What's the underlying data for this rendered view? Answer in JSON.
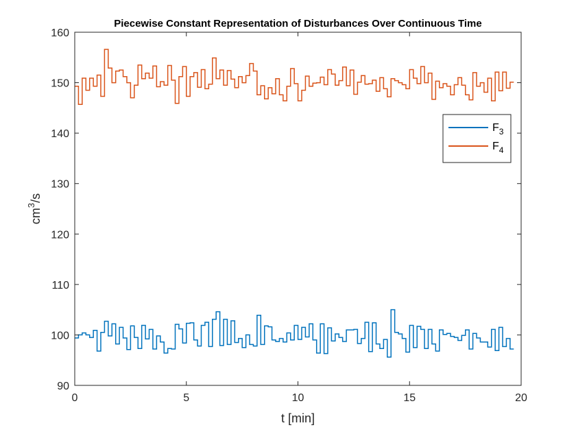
{
  "chart_data": {
    "type": "line",
    "step": true,
    "title": "Piecewise Constant Representation of Disturbances Over Continuous Time",
    "xlabel": "t [min]",
    "ylabel": {
      "base": "cm",
      "sup": "3",
      "tail": "/s"
    },
    "xlim": [
      0,
      20
    ],
    "ylim": [
      90,
      160
    ],
    "xticks": [
      "0",
      "5",
      "10",
      "15",
      "20"
    ],
    "yticks": [
      "90",
      "100",
      "110",
      "120",
      "130",
      "140",
      "150",
      "160"
    ],
    "grid": false,
    "legend_position": "right",
    "dt": 0.1667,
    "series": [
      {
        "name": {
          "base": "F",
          "sub": "3"
        },
        "color": "#0072BD",
        "values": [
          99.4,
          100.0,
          100.4,
          100.0,
          99.5,
          100.9,
          96.8,
          100.5,
          102.7,
          99.8,
          102.2,
          98.2,
          101.5,
          99.4,
          97.1,
          101.8,
          99.5,
          97.3,
          101.9,
          99.2,
          101.1,
          97.2,
          99.8,
          98.6,
          96.4,
          97.3,
          97.2,
          102.1,
          101.2,
          98.4,
          102.3,
          102.4,
          99.0,
          97.8,
          101.9,
          102.5,
          97.7,
          103.1,
          104.6,
          97.9,
          103.1,
          98.1,
          102.8,
          98.5,
          99.3,
          97.5,
          100.0,
          98.1,
          97.8,
          103.9,
          98.1,
          101.8,
          101.6,
          99.0,
          98.7,
          99.3,
          98.6,
          100.4,
          99.0,
          101.9,
          99.1,
          101.5,
          99.6,
          102.2,
          99.0,
          96.4,
          102.2,
          96.3,
          101.4,
          98.8,
          100.2,
          99.5,
          98.7,
          101.0,
          101.0,
          101.1,
          98.3,
          99.3,
          102.5,
          96.7,
          102.4,
          98.2,
          97.3,
          99.1,
          95.6,
          105.0,
          100.5,
          100.2,
          99.3,
          96.6,
          101.9,
          97.5,
          101.7,
          101.1,
          97.3,
          101.1,
          98.2,
          96.8,
          101.0,
          100.1,
          100.3,
          99.7,
          99.5,
          98.9,
          99.9,
          101.0,
          97.2,
          100.3,
          99.4,
          98.6,
          98.6,
          97.6,
          101.1,
          96.9,
          101.5,
          97.7,
          99.3,
          97.2
        ]
      },
      {
        "name": {
          "base": "F",
          "sub": "4"
        },
        "color": "#D95319",
        "values": [
          149.3,
          145.7,
          150.9,
          148.5,
          150.9,
          149.3,
          151.5,
          147.3,
          156.6,
          152.9,
          150.0,
          152.3,
          152.5,
          151.2,
          150.0,
          147.0,
          149.5,
          153.5,
          150.8,
          151.9,
          150.9,
          153.3,
          149.2,
          150.2,
          149.5,
          153.4,
          150.5,
          145.9,
          151.2,
          153.2,
          147.3,
          151.2,
          152.0,
          149.1,
          152.6,
          148.8,
          149.7,
          154.9,
          150.8,
          152.5,
          149.5,
          152.4,
          150.7,
          149.0,
          151.2,
          150.0,
          151.4,
          153.8,
          152.3,
          147.6,
          149.4,
          146.8,
          149.0,
          147.8,
          150.8,
          147.6,
          146.4,
          149.3,
          152.8,
          149.8,
          146.4,
          148.5,
          151.3,
          149.3,
          149.9,
          150.0,
          151.1,
          149.6,
          152.6,
          151.7,
          149.5,
          150.4,
          153.1,
          149.4,
          152.5,
          147.7,
          150.1,
          151.4,
          149.7,
          149.8,
          150.5,
          148.3,
          151.0,
          148.8,
          147.2,
          150.8,
          150.4,
          150.0,
          149.6,
          148.8,
          152.6,
          150.9,
          149.8,
          153.2,
          150.0,
          151.9,
          146.7,
          150.3,
          149.0,
          149.8,
          149.3,
          147.6,
          149.6,
          151.0,
          149.5,
          147.6,
          146.6,
          152.0,
          149.3,
          150.0,
          148.1,
          150.9,
          146.4,
          152.1,
          148.4,
          152.1,
          148.9,
          150.1
        ]
      }
    ]
  }
}
